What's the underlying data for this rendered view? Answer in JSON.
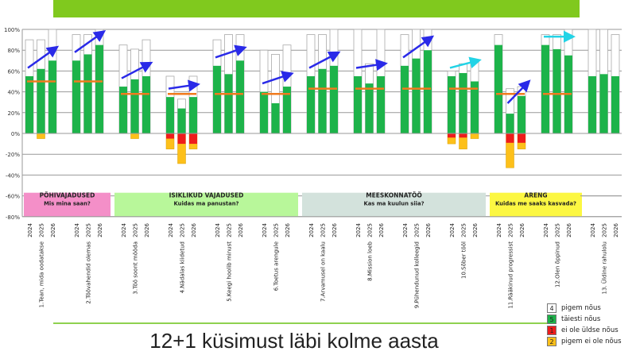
{
  "title": "12+1 küsimust läbi kolme aasta",
  "legend": [
    {
      "code": "4",
      "label": "pigem nõus",
      "color": "#ffffff"
    },
    {
      "code": "5",
      "label": "täiesti nõus",
      "color": "#1db34a"
    },
    {
      "code": "1",
      "label": "ei ole üldse nõus",
      "color": "#ee1c1c"
    },
    {
      "code": "2",
      "label": "pigem ei ole nõus",
      "color": "#fdc01a"
    }
  ],
  "chart_data": {
    "type": "bar",
    "subtype": "stacked-diverging",
    "ylim": [
      -80,
      100
    ],
    "yticks": [
      "100%",
      "80%",
      "60%",
      "40%",
      "20%",
      "0%",
      "-20%",
      "-40%",
      "-60%",
      "-80%"
    ],
    "ytick_values": [
      100,
      80,
      60,
      40,
      20,
      0,
      -20,
      -40,
      -60,
      -80
    ],
    "years": [
      "2024",
      "2025",
      "2026"
    ],
    "colors": {
      "green": "#1db34a",
      "red": "#ee1c1c",
      "yellow": "#fdc01a",
      "benchmark": "#f07b1e",
      "arrow_blue": "#2a2ae8",
      "arrow_cyan": "#22d3e6"
    },
    "categories": [
      {
        "label": "1.Tean, mida oodatakse",
        "green": [
          55,
          62,
          70
        ],
        "agree_total": [
          90,
          90,
          100
        ],
        "red": [
          0,
          0,
          0
        ],
        "neg_total": [
          0,
          5,
          0
        ],
        "benchmark": 50,
        "arrow": "blue"
      },
      {
        "label": "2.Töövahendid olemas",
        "green": [
          70,
          76,
          85
        ],
        "agree_total": [
          95,
          95,
          100
        ],
        "red": [
          0,
          0,
          0
        ],
        "neg_total": [
          0,
          0,
          0
        ],
        "benchmark": 50,
        "arrow": "blue"
      },
      {
        "label": "3.Töö soont mööda",
        "green": [
          45,
          52,
          55
        ],
        "agree_total": [
          85,
          81,
          90
        ],
        "red": [
          0,
          0,
          0
        ],
        "neg_total": [
          0,
          5,
          0
        ],
        "benchmark": 38,
        "arrow": "blue"
      },
      {
        "label": "4.Nädalas kiidetud",
        "green": [
          35,
          24,
          35
        ],
        "agree_total": [
          55,
          33,
          55
        ],
        "red": [
          5,
          10,
          10
        ],
        "neg_total": [
          15,
          29,
          15
        ],
        "benchmark": 38,
        "arrow": "blue"
      },
      {
        "label": "5.Keegi hoolib minust",
        "green": [
          65,
          57,
          70
        ],
        "agree_total": [
          90,
          95,
          95
        ],
        "red": [
          0,
          0,
          0
        ],
        "neg_total": [
          0,
          0,
          0
        ],
        "benchmark": 38,
        "arrow": "blue"
      },
      {
        "label": "6.Toetus arengule",
        "green": [
          40,
          29,
          45
        ],
        "agree_total": [
          80,
          76,
          85
        ],
        "red": [
          0,
          0,
          0
        ],
        "neg_total": [
          0,
          0,
          0
        ],
        "benchmark": 38,
        "arrow": "blue"
      },
      {
        "label": "7.Arvamusel on kaalu",
        "green": [
          55,
          62,
          65
        ],
        "agree_total": [
          95,
          95,
          100
        ],
        "red": [
          0,
          0,
          0
        ],
        "neg_total": [
          0,
          0,
          0
        ],
        "benchmark": 43,
        "arrow": "blue"
      },
      {
        "label": "8.Mission loeb",
        "green": [
          55,
          48,
          55
        ],
        "agree_total": [
          100,
          67,
          100
        ],
        "red": [
          0,
          0,
          0
        ],
        "neg_total": [
          0,
          0,
          0
        ],
        "benchmark": 43,
        "arrow": "blue"
      },
      {
        "label": "9.Pühendunud kolleegid",
        "green": [
          65,
          72,
          80
        ],
        "agree_total": [
          95,
          100,
          100
        ],
        "red": [
          0,
          0,
          0
        ],
        "neg_total": [
          0,
          0,
          0
        ],
        "benchmark": 43,
        "arrow": "blue"
      },
      {
        "label": "10.Sõber tööl",
        "green": [
          55,
          58,
          50
        ],
        "agree_total": [
          60,
          67,
          70
        ],
        "red": [
          4,
          4,
          0
        ],
        "neg_total": [
          10,
          15,
          5
        ],
        "benchmark": 43,
        "arrow": "cyan"
      },
      {
        "label": "11.Rääkinud progressist",
        "green": [
          85,
          19,
          36
        ],
        "agree_total": [
          95,
          43,
          45
        ],
        "red": [
          0,
          9,
          9
        ],
        "neg_total": [
          0,
          33,
          15
        ],
        "benchmark": 38,
        "arrow": "blue-short"
      },
      {
        "label": "12.Olen õppinud",
        "green": [
          85,
          81,
          75
        ],
        "agree_total": [
          95,
          95,
          100
        ],
        "red": [
          0,
          0,
          0
        ],
        "neg_total": [
          0,
          0,
          0
        ],
        "benchmark": 38,
        "arrow": "cyan"
      },
      {
        "label": "13. Üldine rahulolu",
        "green": [
          55,
          57,
          55
        ],
        "agree_total": [
          100,
          100,
          95
        ],
        "red": [
          0,
          0,
          0
        ],
        "neg_total": [
          0,
          0,
          0
        ],
        "benchmark": null,
        "arrow": null
      }
    ],
    "sections": [
      {
        "title": "PÕHIVAJADUSED",
        "subtitle": "Mis mina saan?",
        "from": 0,
        "to": 1,
        "color": "#f48fc8"
      },
      {
        "title": "ISIKLIKUD VAJADUSED",
        "subtitle": "Kuidas ma panustan?",
        "from": 2,
        "to": 5,
        "color": "#b8f79a"
      },
      {
        "title": "MEESKONNATÖÖ",
        "subtitle": "Kas ma kuulun siia?",
        "from": 6,
        "to": 9,
        "color": "#d3e2dc"
      },
      {
        "title": "ARENG",
        "subtitle": "Kuidas me saaks kasvada?",
        "from": 10,
        "to": 11,
        "color": "#fcf742"
      }
    ]
  }
}
